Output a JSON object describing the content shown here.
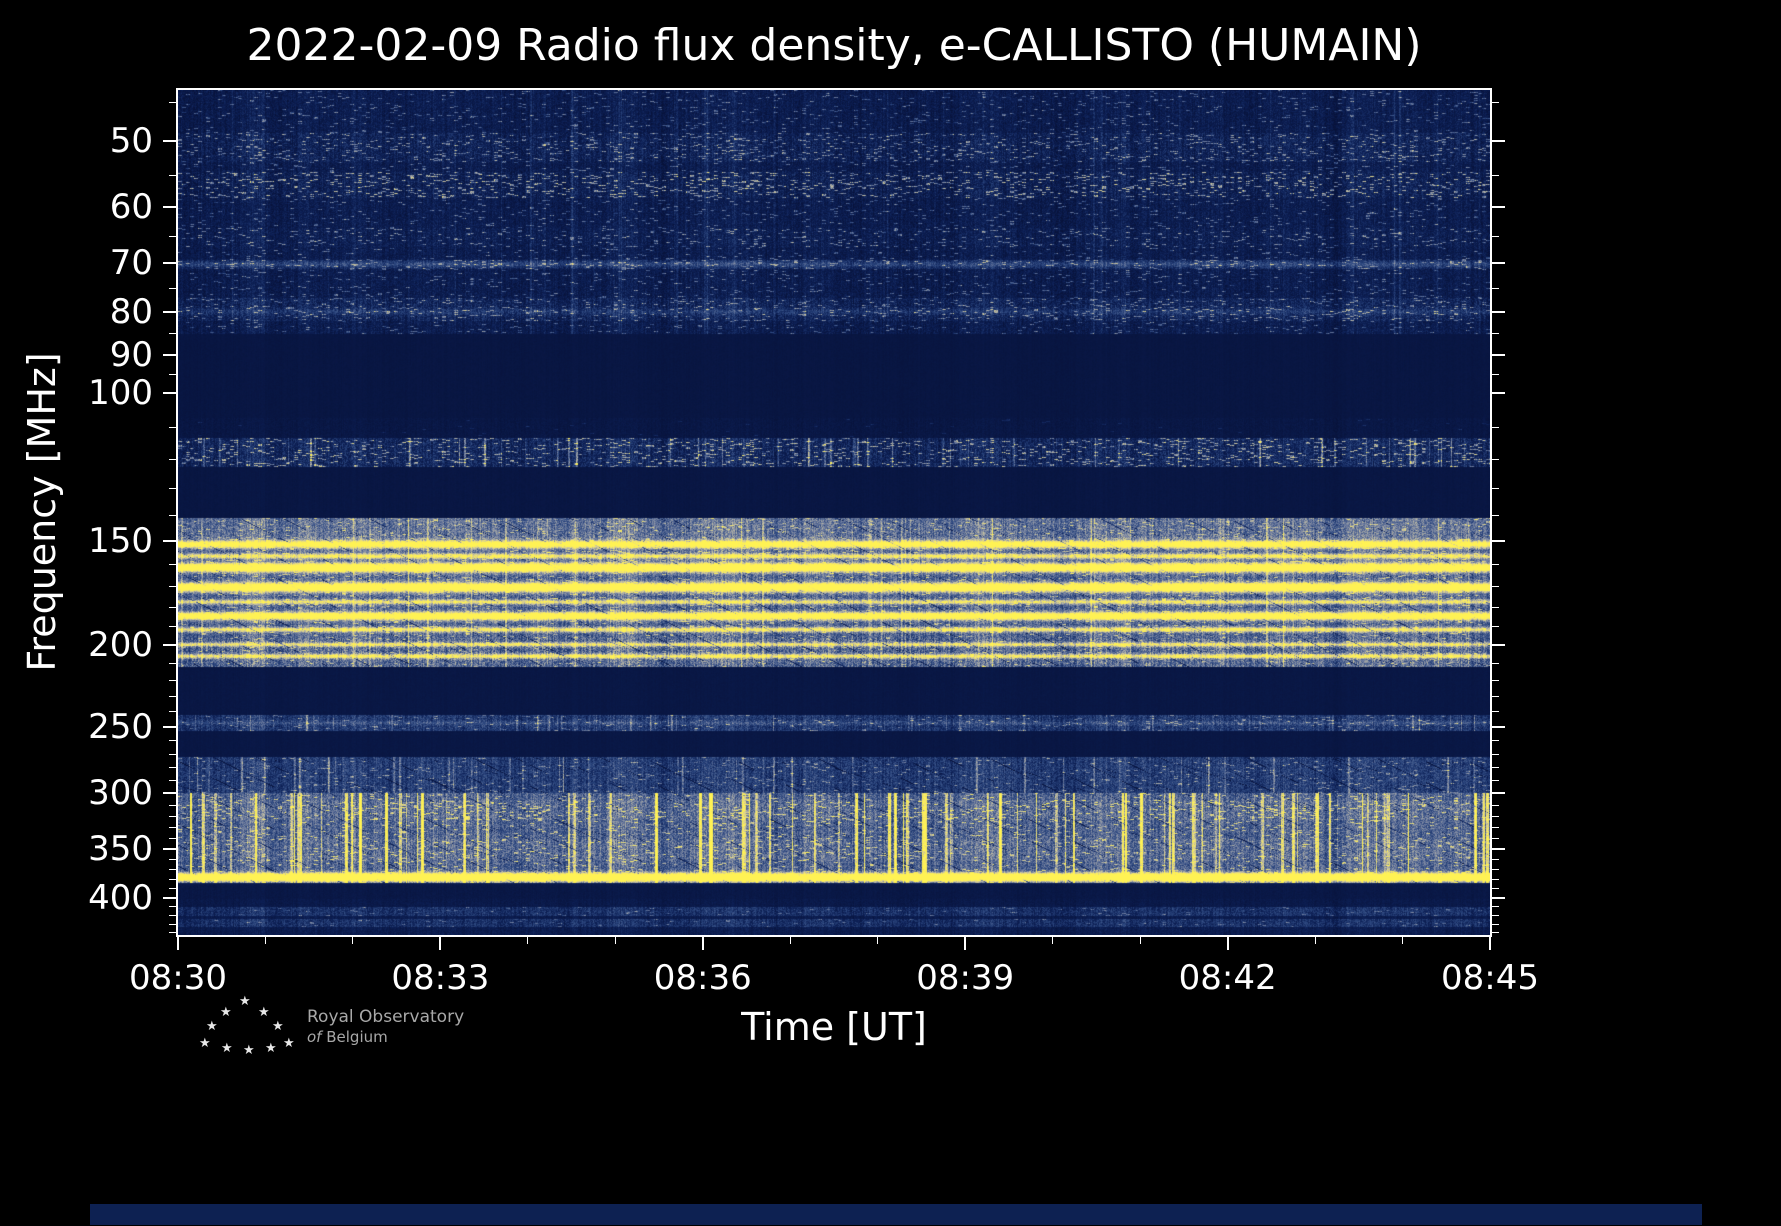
{
  "page": {
    "background": "#000000"
  },
  "chart_data": {
    "type": "heatmap",
    "subtype": "radio-spectrogram",
    "title": "2022-02-09 Radio flux density, e-CALLISTO (HUMAIN)",
    "date": "2022-02-09",
    "instrument": "e-CALLISTO",
    "station": "HUMAIN",
    "xlabel": "Time [UT]",
    "ylabel": "Frequency [MHz]",
    "x_start": "08:30",
    "x_end": "08:45",
    "x_span_minutes": 15,
    "x_tick_labels": [
      "08:30",
      "08:33",
      "08:36",
      "08:39",
      "08:42",
      "08:45"
    ],
    "x_minor_every_minutes": 1,
    "y_scale": "log",
    "y_min_mhz": 43.5,
    "y_max_mhz": 443,
    "y_tick_labels": [
      50,
      60,
      70,
      80,
      90,
      100,
      150,
      200,
      250,
      300,
      350,
      400
    ],
    "y_minor_ticks_mhz": [
      45,
      55,
      65,
      75,
      85,
      95,
      110,
      120,
      130,
      140,
      160,
      170,
      180,
      190,
      210,
      220,
      230,
      240,
      260,
      270,
      280,
      290,
      310,
      320,
      330,
      340,
      360,
      370,
      380,
      390,
      410,
      420,
      430,
      440
    ],
    "seed": 20220209,
    "colormap": [
      {
        "v": 0.0,
        "rgb": [
          7,
          18,
          58
        ]
      },
      {
        "v": 0.18,
        "rgb": [
          13,
          32,
          86
        ]
      },
      {
        "v": 0.38,
        "rgb": [
          45,
          72,
          128
        ]
      },
      {
        "v": 0.58,
        "rgb": [
          120,
          132,
          162
        ]
      },
      {
        "v": 0.74,
        "rgb": [
          196,
          192,
          164
        ]
      },
      {
        "v": 0.88,
        "rgb": [
          238,
          224,
          120
        ]
      },
      {
        "v": 1.0,
        "rgb": [
          255,
          242,
          84
        ]
      }
    ],
    "bands": [
      {
        "lo": 43.5,
        "hi": 85,
        "base": 0.13,
        "noise": 0.1,
        "sp": 0.05,
        "spAmp": 0.45
      },
      {
        "lo": 49,
        "hi": 53,
        "base": 0.17,
        "noise": 0.13,
        "sp": 0.1,
        "spAmp": 0.5
      },
      {
        "lo": 54.5,
        "hi": 58.5,
        "base": 0.16,
        "noise": 0.13,
        "sp": 0.12,
        "spAmp": 0.6
      },
      {
        "lo": 63.5,
        "hi": 67,
        "base": 0.15,
        "noise": 0.11,
        "sp": 0.08,
        "spAmp": 0.5
      },
      {
        "lo": 69.3,
        "hi": 71.2,
        "base": 0.2,
        "noise": 0.12,
        "sp": 0.1,
        "spAmp": 0.4
      },
      {
        "lo": 77,
        "hi": 82,
        "base": 0.19,
        "noise": 0.13,
        "sp": 0.09,
        "spAmp": 0.45
      },
      {
        "lo": 85,
        "hi": 107,
        "base": 0.055,
        "noise": 0.02,
        "sp": 0,
        "spAmp": 0
      },
      {
        "lo": 107,
        "hi": 113,
        "base": 0.07,
        "noise": 0.04,
        "sp": 0.01,
        "spAmp": 0.2
      },
      {
        "lo": 113,
        "hi": 122.5,
        "base": 0.21,
        "noise": 0.14,
        "sp": 0.12,
        "spAmp": 0.55
      },
      {
        "lo": 122.5,
        "hi": 141,
        "base": 0.06,
        "noise": 0.02,
        "sp": 0,
        "spAmp": 0
      },
      {
        "lo": 141,
        "hi": 212,
        "base": 0.48,
        "noise": 0.14,
        "sp": 0.06,
        "spAmp": 0.35,
        "diag": true
      },
      {
        "lo": 141,
        "hi": 149.5,
        "base": 0.52,
        "noise": 0.15,
        "sp": 0.06,
        "spAmp": 0.3,
        "diag": true
      },
      {
        "lo": 196,
        "hi": 212,
        "base": 0.49,
        "noise": 0.17,
        "sp": 0.04,
        "spAmp": 0.3,
        "diag": true
      },
      {
        "lo": 212,
        "hi": 242,
        "base": 0.07,
        "noise": 0.02,
        "sp": 0,
        "spAmp": 0
      },
      {
        "lo": 242,
        "hi": 253,
        "base": 0.3,
        "noise": 0.13,
        "sp": 0.05,
        "spAmp": 0.35
      },
      {
        "lo": 253,
        "hi": 272,
        "base": 0.07,
        "noise": 0.02,
        "sp": 0,
        "spAmp": 0
      },
      {
        "lo": 272,
        "hi": 300,
        "base": 0.32,
        "noise": 0.13,
        "sp": 0.05,
        "spAmp": 0.35,
        "diag": true
      },
      {
        "lo": 300,
        "hi": 384,
        "base": 0.47,
        "noise": 0.15,
        "sp": 0.06,
        "spAmp": 0.4,
        "diag": true
      },
      {
        "lo": 306,
        "hi": 323,
        "base": 0.5,
        "noise": 0.16,
        "sp": 0.1,
        "spAmp": 0.45,
        "diag": true
      },
      {
        "lo": 340,
        "hi": 362,
        "base": 0.5,
        "noise": 0.16,
        "sp": 0.07,
        "spAmp": 0.4,
        "diag": true
      },
      {
        "lo": 384,
        "hi": 401,
        "base": 0.08,
        "noise": 0.03,
        "sp": 0,
        "spAmp": 0
      },
      {
        "lo": 401,
        "hi": 410,
        "base": 0.1,
        "noise": 0.05,
        "sp": 0,
        "spAmp": 0
      },
      {
        "lo": 410,
        "hi": 433,
        "base": 0.26,
        "noise": 0.12,
        "sp": 0.03,
        "spAmp": 0.3
      },
      {
        "lo": 420,
        "hi": 424,
        "base": 0.13,
        "noise": 0.06,
        "sp": 0,
        "spAmp": 0
      },
      {
        "lo": 433,
        "hi": 443,
        "base": 0.13,
        "noise": 0.07,
        "sp": 0,
        "spAmp": 0
      }
    ],
    "h_emission_lines_mhz": [
      {
        "f": 70.2,
        "sigma": 0.45,
        "amp": 0.18
      },
      {
        "f": 80.0,
        "sigma": 0.5,
        "amp": 0.12
      },
      {
        "f": 151.5,
        "sigma": 1.1,
        "amp": 0.75
      },
      {
        "f": 156.5,
        "sigma": 0.8,
        "amp": 0.5
      },
      {
        "f": 161.5,
        "sigma": 1.3,
        "amp": 0.95
      },
      {
        "f": 170.5,
        "sigma": 1.4,
        "amp": 0.95
      },
      {
        "f": 177.5,
        "sigma": 0.8,
        "amp": 0.45
      },
      {
        "f": 184.5,
        "sigma": 1.3,
        "amp": 0.85
      },
      {
        "f": 191.5,
        "sigma": 0.9,
        "amp": 0.5
      },
      {
        "f": 199.5,
        "sigma": 0.8,
        "amp": 0.45
      },
      {
        "f": 206.0,
        "sigma": 0.9,
        "amp": 0.5
      },
      {
        "f": 247.5,
        "sigma": 1.0,
        "amp": 0.12
      },
      {
        "f": 378.0,
        "sigma": 2.8,
        "amp": 1.15
      }
    ],
    "v_streak_bands": [
      {
        "lo": 300,
        "hi": 384,
        "density": 0.07,
        "widthMax": 3,
        "ampLo": 0.25,
        "ampHi": 0.75
      },
      {
        "lo": 272,
        "hi": 300,
        "density": 0.04,
        "widthMax": 2,
        "ampLo": 0.12,
        "ampHi": 0.35
      },
      {
        "lo": 141,
        "hi": 212,
        "density": 0.04,
        "widthMax": 2,
        "ampLo": 0.08,
        "ampHi": 0.25
      },
      {
        "lo": 113,
        "hi": 122.5,
        "density": 0.05,
        "widthMax": 2,
        "ampLo": 0.15,
        "ampHi": 0.45
      },
      {
        "lo": 242,
        "hi": 253,
        "density": 0.03,
        "widthMax": 2,
        "ampLo": 0.1,
        "ampHi": 0.3
      },
      {
        "lo": 43.5,
        "hi": 85,
        "density": 0.03,
        "widthMax": 2,
        "ampLo": 0.05,
        "ampHi": 0.18
      }
    ]
  },
  "footer": {
    "logo_line1": "Royal Observatory",
    "logo_of": "of",
    "logo_belgium": "Belgium"
  },
  "icons": {
    "star": "★"
  }
}
